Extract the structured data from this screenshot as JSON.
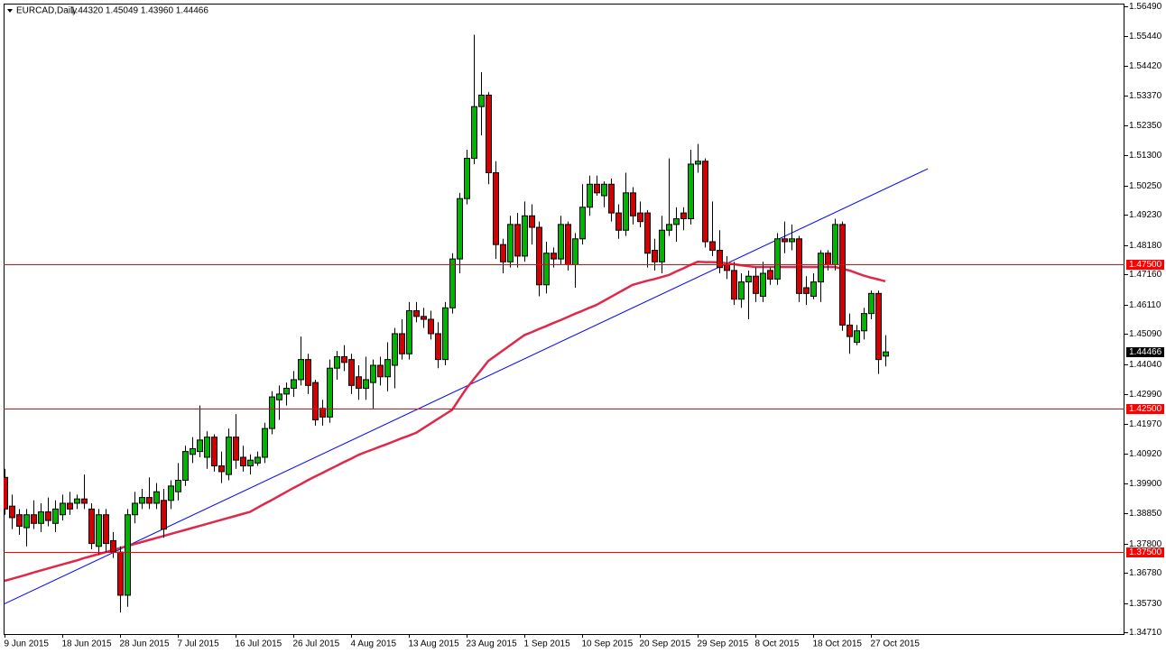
{
  "chart_data": {
    "type": "candlestick",
    "title": "EURCAD,Daily",
    "title_values": "1.44320 1.45049 1.43960 1.44466",
    "categories": [
      "9 Jun 2015",
      null,
      null,
      null,
      null,
      null,
      null,
      null,
      "18 Jun 2015",
      null,
      null,
      null,
      null,
      null,
      null,
      null,
      "28 Jun 2015",
      null,
      null,
      null,
      null,
      null,
      null,
      null,
      "7 Jul 2015",
      null,
      null,
      null,
      null,
      null,
      null,
      null,
      "16 Jul 2015",
      null,
      null,
      null,
      null,
      null,
      null,
      null,
      "26 Jul 2015",
      null,
      null,
      null,
      null,
      null,
      null,
      null,
      "4 Aug 2015",
      null,
      null,
      null,
      null,
      null,
      null,
      null,
      "13 Aug 2015",
      null,
      null,
      null,
      null,
      null,
      null,
      null,
      "23 Aug 2015",
      null,
      null,
      null,
      null,
      null,
      null,
      null,
      "1 Sep 2015",
      null,
      null,
      null,
      null,
      null,
      null,
      null,
      "10 Sep 2015",
      null,
      null,
      null,
      null,
      null,
      null,
      null,
      "20 Sep 2015",
      null,
      null,
      null,
      null,
      null,
      null,
      null,
      "29 Sep 2015",
      null,
      null,
      null,
      null,
      null,
      null,
      null,
      "8 Oct 2015",
      null,
      null,
      null,
      null,
      null,
      null,
      null,
      "18 Oct 2015",
      null,
      null,
      null,
      null,
      null,
      null,
      null,
      "27 Oct 2015",
      null,
      null
    ],
    "open": [
      1.401,
      1.391,
      1.388,
      1.3835,
      1.388,
      1.385,
      1.389,
      1.385,
      1.388,
      1.392,
      1.392,
      1.3935,
      1.39,
      1.377,
      1.388,
      1.379,
      1.375,
      1.36,
      1.388,
      1.392,
      1.394,
      1.392,
      1.393,
      1.393,
      1.396,
      1.4,
      1.409,
      1.41,
      1.408,
      1.415,
      1.405,
      1.402,
      1.415,
      1.408,
      1.405,
      1.406,
      1.408,
      1.418,
      1.428,
      1.43,
      1.432,
      1.435,
      1.442,
      1.434,
      1.425,
      1.422,
      1.439,
      1.443,
      1.442,
      1.436,
      1.432,
      1.434,
      1.44,
      1.436,
      1.44,
      1.451,
      1.444,
      1.459,
      1.457,
      1.456,
      1.451,
      1.442,
      1.46,
      1.477,
      1.498,
      1.512,
      1.53,
      1.534,
      1.507,
      1.482,
      1.476,
      1.489,
      1.478,
      1.492,
      1.488,
      1.468,
      1.479,
      1.477,
      1.489,
      1.475,
      1.484,
      1.495,
      1.503,
      1.499,
      1.503,
      1.493,
      1.487,
      1.5,
      1.493,
      1.493,
      1.48,
      1.476,
      1.487,
      1.489,
      1.493,
      1.491,
      1.51,
      1.511,
      1.483,
      1.48,
      1.475,
      1.473,
      1.463,
      1.469,
      1.471,
      1.464,
      1.473,
      1.47,
      1.484,
      1.483,
      1.484,
      1.467,
      1.464,
      1.469,
      1.479,
      1.475,
      1.489,
      1.454,
      1.448,
      1.452,
      1.458,
      1.465,
      1.4432
    ],
    "high": [
      1.404,
      1.395,
      1.39,
      1.39,
      1.393,
      1.392,
      1.394,
      1.393,
      1.395,
      1.396,
      1.395,
      1.402,
      1.392,
      1.39,
      1.39,
      1.382,
      1.377,
      1.39,
      1.396,
      1.397,
      1.401,
      1.399,
      1.397,
      1.4,
      1.406,
      1.412,
      1.415,
      1.426,
      1.417,
      1.416,
      1.41,
      1.418,
      1.423,
      1.412,
      1.409,
      1.41,
      1.42,
      1.431,
      1.433,
      1.434,
      1.438,
      1.45,
      1.444,
      1.435,
      1.428,
      1.442,
      1.445,
      1.447,
      1.444,
      1.44,
      1.443,
      1.442,
      1.443,
      1.448,
      1.453,
      1.456,
      1.462,
      1.462,
      1.46,
      1.459,
      1.455,
      1.462,
      1.479,
      1.5,
      1.515,
      1.555,
      1.542,
      1.535,
      1.511,
      1.484,
      1.492,
      1.493,
      1.497,
      1.496,
      1.49,
      1.483,
      1.481,
      1.492,
      1.49,
      1.486,
      1.503,
      1.506,
      1.506,
      1.504,
      1.505,
      1.496,
      1.507,
      1.502,
      1.497,
      1.494,
      1.484,
      1.492,
      1.512,
      1.495,
      1.495,
      1.515,
      1.517,
      1.512,
      1.497,
      1.487,
      1.478,
      1.476,
      1.472,
      1.473,
      1.474,
      1.476,
      1.474,
      1.486,
      1.49,
      1.489,
      1.485,
      1.471,
      1.472,
      1.48,
      1.48,
      1.491,
      1.49,
      1.458,
      1.454,
      1.46,
      1.466,
      1.466,
      1.45049
    ],
    "low": [
      1.388,
      1.383,
      1.381,
      1.377,
      1.383,
      1.382,
      1.384,
      1.382,
      1.386,
      1.388,
      1.39,
      1.39,
      1.376,
      1.374,
      1.375,
      1.373,
      1.354,
      1.356,
      1.385,
      1.39,
      1.39,
      1.39,
      1.38,
      1.39,
      1.393,
      1.398,
      1.406,
      1.408,
      1.404,
      1.403,
      1.399,
      1.4,
      1.404,
      1.403,
      1.402,
      1.405,
      1.406,
      1.416,
      1.421,
      1.426,
      1.429,
      1.433,
      1.43,
      1.419,
      1.419,
      1.42,
      1.435,
      1.438,
      1.43,
      1.428,
      1.428,
      1.425,
      1.433,
      1.431,
      1.432,
      1.442,
      1.442,
      1.455,
      1.453,
      1.449,
      1.439,
      1.44,
      1.458,
      1.472,
      1.496,
      1.51,
      1.52,
      1.503,
      1.477,
      1.472,
      1.474,
      1.474,
      1.476,
      1.482,
      1.464,
      1.465,
      1.474,
      1.475,
      1.473,
      1.467,
      1.482,
      1.492,
      1.499,
      1.495,
      1.49,
      1.484,
      1.485,
      1.489,
      1.488,
      1.474,
      1.473,
      1.472,
      1.485,
      1.483,
      1.487,
      1.489,
      1.507,
      1.481,
      1.478,
      1.472,
      1.47,
      1.461,
      1.46,
      1.456,
      1.462,
      1.462,
      1.468,
      1.468,
      1.479,
      1.48,
      1.462,
      1.461,
      1.463,
      1.462,
      1.473,
      1.473,
      1.452,
      1.444,
      1.447,
      1.449,
      1.456,
      1.437,
      1.4396
    ],
    "close": [
      1.39,
      1.387,
      1.384,
      1.388,
      1.385,
      1.389,
      1.386,
      1.39,
      1.392,
      1.39,
      1.3935,
      1.392,
      1.378,
      1.388,
      1.378,
      1.375,
      1.36,
      1.388,
      1.392,
      1.394,
      1.392,
      1.396,
      1.383,
      1.398,
      1.4,
      1.41,
      1.411,
      1.414,
      1.415,
      1.405,
      1.403,
      1.415,
      1.407,
      1.405,
      1.407,
      1.408,
      1.418,
      1.429,
      1.43,
      1.432,
      1.435,
      1.442,
      1.433,
      1.421,
      1.422,
      1.439,
      1.443,
      1.441,
      1.433,
      1.432,
      1.435,
      1.44,
      1.436,
      1.442,
      1.451,
      1.444,
      1.459,
      1.457,
      1.456,
      1.451,
      1.442,
      1.46,
      1.477,
      1.498,
      1.512,
      1.53,
      1.534,
      1.507,
      1.482,
      1.476,
      1.489,
      1.478,
      1.492,
      1.488,
      1.468,
      1.479,
      1.477,
      1.489,
      1.475,
      1.484,
      1.495,
      1.503,
      1.5,
      1.503,
      1.493,
      1.487,
      1.5,
      1.492,
      1.49,
      1.479,
      1.476,
      1.487,
      1.489,
      1.491,
      1.491,
      1.51,
      1.511,
      1.483,
      1.48,
      1.474,
      1.473,
      1.463,
      1.469,
      1.471,
      1.465,
      1.472,
      1.47,
      1.484,
      1.483,
      1.484,
      1.465,
      1.465,
      1.469,
      1.479,
      1.475,
      1.489,
      1.454,
      1.45,
      1.452,
      1.458,
      1.465,
      1.442,
      1.44466
    ],
    "up_color": "#00b400",
    "down_color": "#d40000",
    "wick_color": "#000000",
    "ma": {
      "color": "#e0284a",
      "values": [
        1.365,
        1.3657,
        1.3664,
        1.3671,
        1.3679,
        1.3686,
        1.3693,
        1.37,
        1.3707,
        1.3714,
        1.3721,
        1.3729,
        1.3736,
        1.3743,
        1.375,
        1.3757,
        1.3764,
        1.3771,
        1.3778,
        1.3785,
        1.3792,
        1.3799,
        1.3806,
        1.3813,
        1.382,
        1.3827,
        1.3834,
        1.3841,
        1.3848,
        1.3855,
        1.3862,
        1.3869,
        1.3876,
        1.3883,
        1.389,
        1.3904,
        1.3918,
        1.3931,
        1.3945,
        1.3959,
        1.3973,
        1.3986,
        1.4,
        1.4013,
        1.4025,
        1.4038,
        1.405,
        1.4063,
        1.4075,
        1.4088,
        1.4098,
        1.4107,
        1.4117,
        1.4126,
        1.4136,
        1.4146,
        1.4155,
        1.4165,
        1.4181,
        1.4197,
        1.4213,
        1.4229,
        1.4245,
        1.4283,
        1.432,
        1.4352,
        1.4383,
        1.4415,
        1.4433,
        1.4451,
        1.4469,
        1.4487,
        1.4505,
        1.4515,
        1.4526,
        1.4536,
        1.4547,
        1.4557,
        1.4568,
        1.4579,
        1.4589,
        1.46,
        1.461,
        1.4624,
        1.4638,
        1.4652,
        1.4666,
        1.468,
        1.4687,
        1.4694,
        1.47,
        1.4707,
        1.4714,
        1.4726,
        1.4737,
        1.4749,
        1.476,
        1.4759,
        1.4759,
        1.4758,
        1.4755,
        1.4752,
        1.4748,
        1.4745,
        1.4742,
        1.4742,
        1.4742,
        1.4742,
        1.4742,
        1.4742,
        1.4742,
        1.4742,
        1.4742,
        1.4742,
        1.4742,
        1.4742,
        1.4736,
        1.473,
        1.4721,
        1.4712,
        1.4705,
        1.4699,
        1.4692
      ]
    },
    "trendline": {
      "color": "#0000ff",
      "x": [
        -0.1,
        127.9
      ],
      "values": [
        1.3569,
        1.5084
      ]
    },
    "levels": {
      "color": "#ff0000",
      "values": [
        {
          "value": 1.475,
          "label": "1.47500"
        },
        {
          "value": 1.425,
          "label": "1.42500"
        },
        {
          "value": 1.375,
          "label": "1.37500"
        }
      ]
    },
    "last_price": {
      "value": 1.44466,
      "label": "1.44466"
    },
    "ylim": [
      1.34649,
      1.56584
    ],
    "yticks": [
      {
        "value": 1.5649,
        "label": "1.56490"
      },
      {
        "value": 1.5544,
        "label": "1.55440"
      },
      {
        "value": 1.5442,
        "label": "1.54420"
      },
      {
        "value": 1.5337,
        "label": "1.53370"
      },
      {
        "value": 1.5235,
        "label": "1.52350"
      },
      {
        "value": 1.513,
        "label": "1.51300"
      },
      {
        "value": 1.5025,
        "label": "1.50250"
      },
      {
        "value": 1.4923,
        "label": "1.49230"
      },
      {
        "value": 1.4818,
        "label": "1.48180"
      },
      {
        "value": 1.4716,
        "label": "1.47160"
      },
      {
        "value": 1.4611,
        "label": "1.46110"
      },
      {
        "value": 1.4509,
        "label": "1.45090"
      },
      {
        "value": 1.4404,
        "label": "1.44040"
      },
      {
        "value": 1.4299,
        "label": "1.42990"
      },
      {
        "value": 1.4197,
        "label": "1.41970"
      },
      {
        "value": 1.4092,
        "label": "1.40920"
      },
      {
        "value": 1.399,
        "label": "1.39900"
      },
      {
        "value": 1.3885,
        "label": "1.38850"
      },
      {
        "value": 1.378,
        "label": "1.37800"
      },
      {
        "value": 1.3678,
        "label": "1.36780"
      },
      {
        "value": 1.3573,
        "label": "1.35730"
      },
      {
        "value": 1.3471,
        "label": "1.34710"
      }
    ]
  }
}
